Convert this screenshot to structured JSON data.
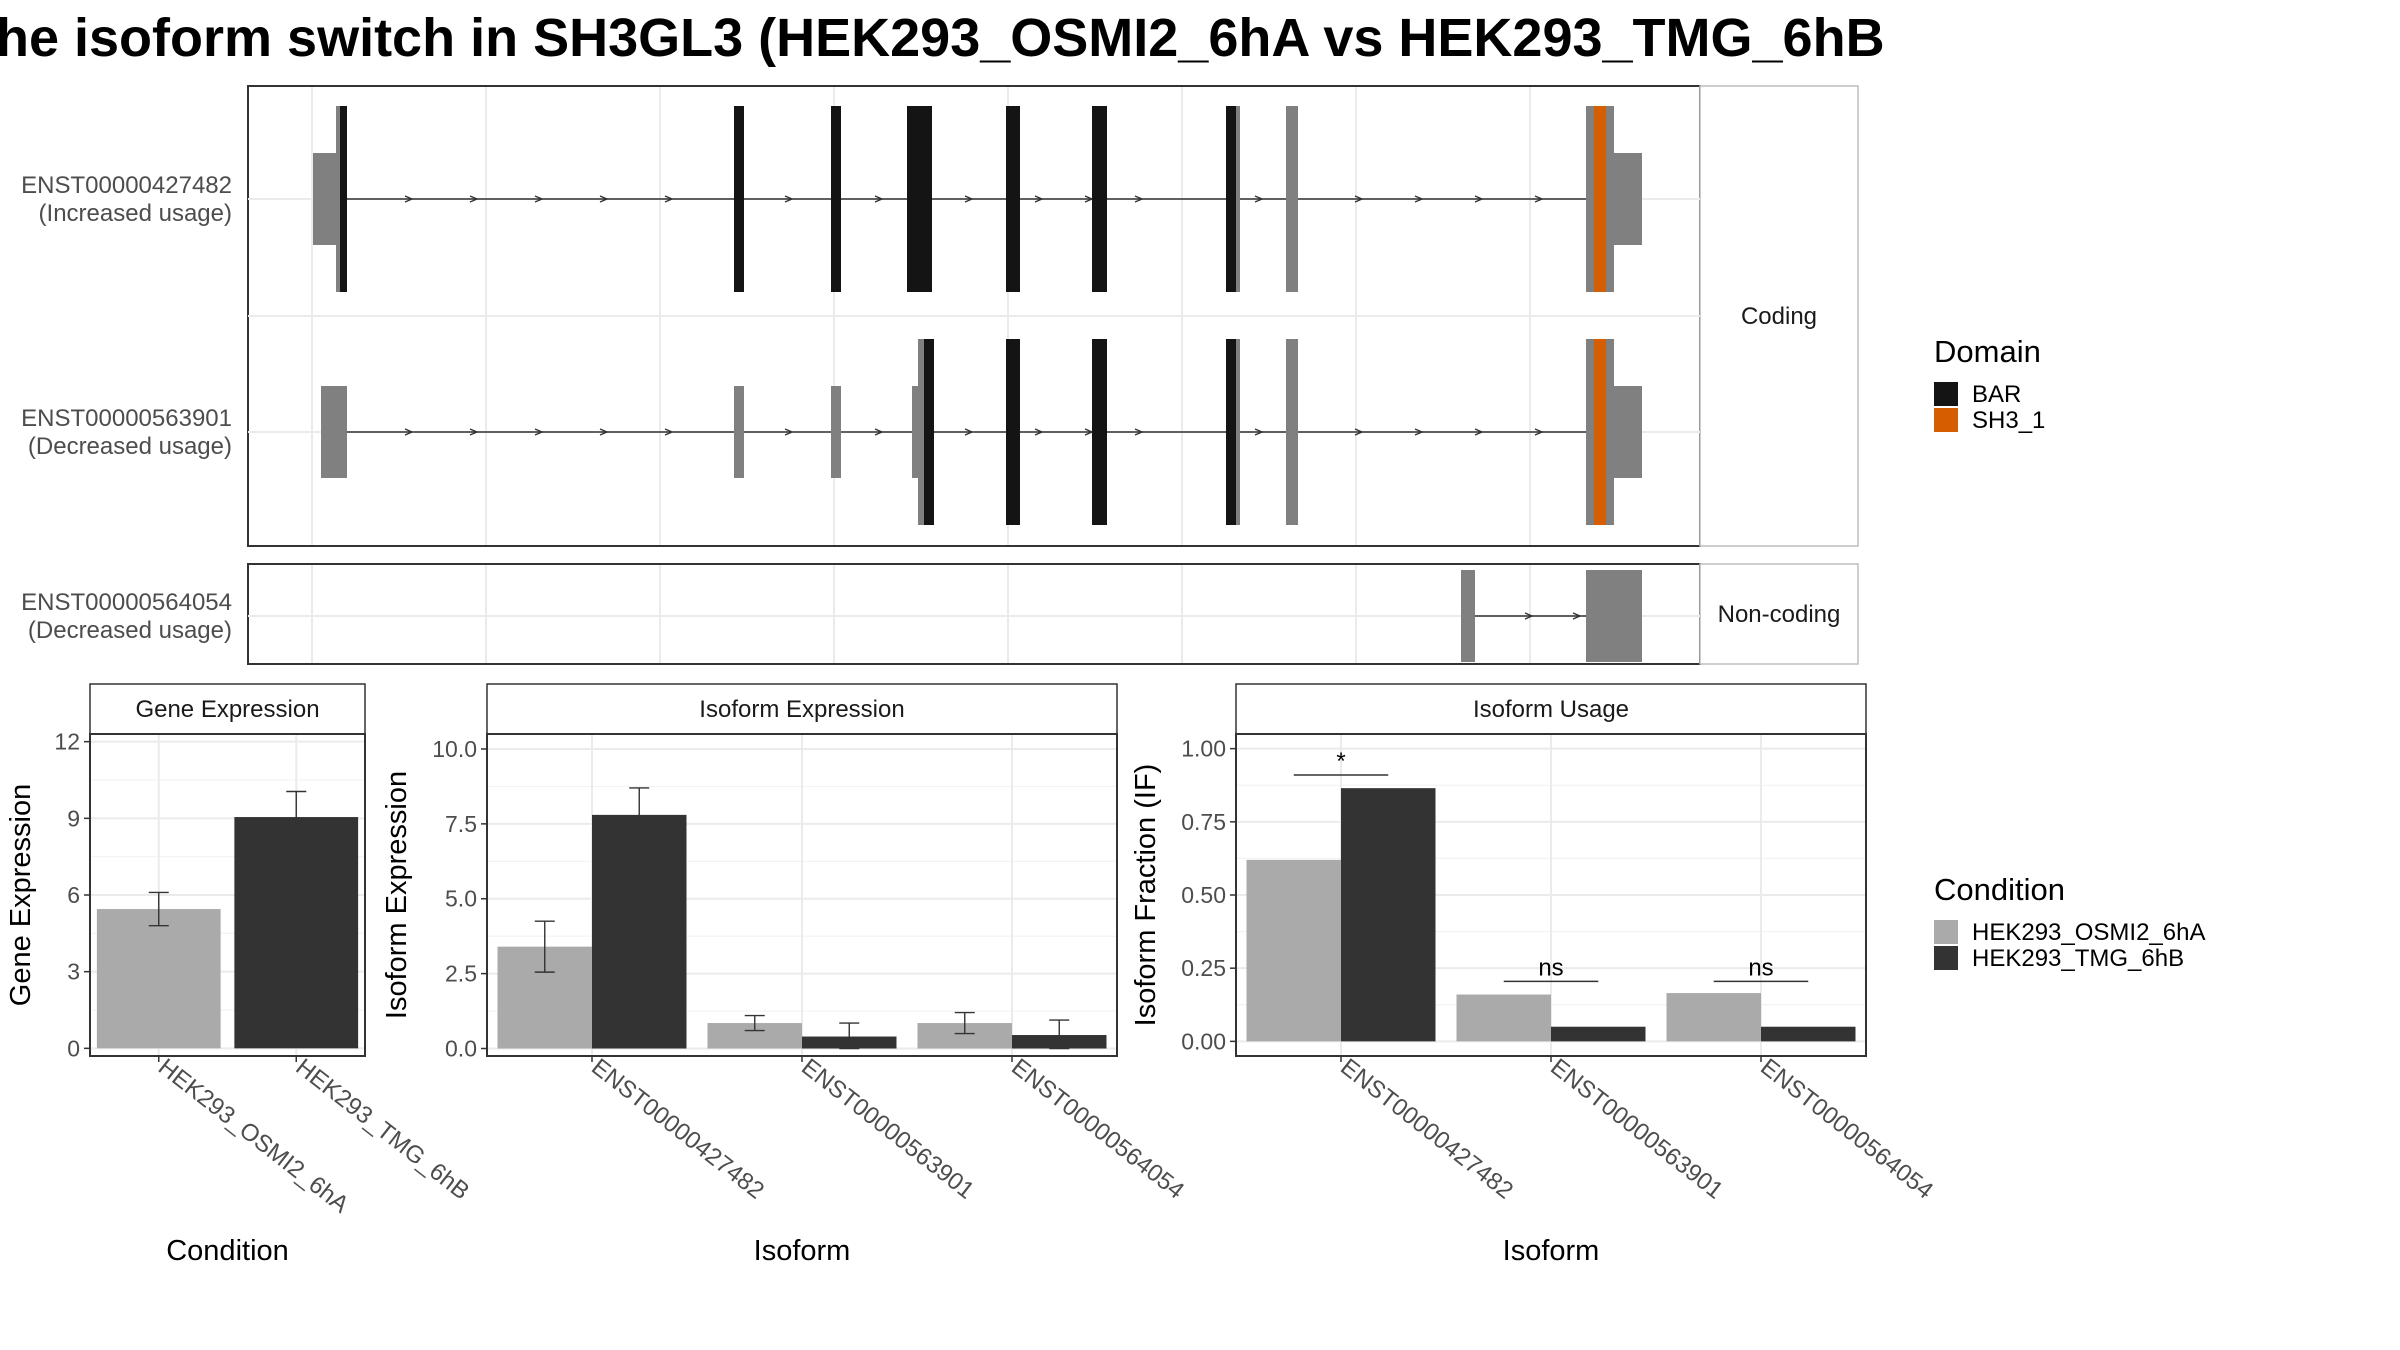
{
  "title": "he isoform switch in SH3GL3 (HEK293_OSMI2_6hA vs HEK293_TMG_6hB",
  "colors": {
    "bar_grey": "#aaaaaa",
    "bar_dark": "#333333",
    "exon_grey": "#808080",
    "exon_black": "#141414",
    "sh3": "#d55e00",
    "grid": "#ebebeb",
    "strip_text": "#1a1a1a"
  },
  "structure": {
    "facets": [
      {
        "label": "Coding",
        "tracks": [
          "t1",
          "t2"
        ]
      },
      {
        "label": "Non-coding",
        "tracks": [
          "t3"
        ]
      }
    ],
    "tracks": [
      {
        "id": "t1",
        "label_line1": "ENST00000427482",
        "label_line2": "(Increased usage)"
      },
      {
        "id": "t2",
        "label_line1": "ENST00000563901",
        "label_line2": "(Decreased usage)"
      },
      {
        "id": "t3",
        "label_line1": "ENST00000564054",
        "label_line2": "(Decreased usage)"
      }
    ],
    "legend_title": "Domain",
    "legend": [
      {
        "name": "BAR",
        "color": "#141414"
      },
      {
        "name": "SH3_1",
        "color": "#d55e00"
      }
    ]
  },
  "chart_data": [
    {
      "type": "bar",
      "panel_title": "Gene Expression",
      "ylabel": "Gene Expression",
      "xlabel": "Condition",
      "categories": [
        "HEK293_OSMI2_6hA",
        "HEK293_TMG_6hB"
      ],
      "yticks": [
        "0",
        "3",
        "6",
        "9",
        "12"
      ],
      "ylim": [
        -0.3,
        12.3
      ],
      "values": [
        5.45,
        9.05
      ],
      "errors": [
        [
          4.8,
          6.1
        ],
        [
          8.05,
          10.05
        ]
      ]
    },
    {
      "type": "bar",
      "panel_title": "Isoform Expression",
      "ylabel": "Isoform Expression",
      "xlabel": "Isoform",
      "categories": [
        "ENST00000427482",
        "ENST00000563901",
        "ENST00000564054"
      ],
      "yticks": [
        "0.0",
        "2.5",
        "5.0",
        "7.5",
        "10.0"
      ],
      "ylim": [
        -0.25,
        10.5
      ],
      "series": [
        {
          "name": "HEK293_OSMI2_6hA",
          "values": [
            3.4,
            0.85,
            0.85
          ],
          "errors": [
            [
              2.55,
              4.25
            ],
            [
              0.6,
              1.1
            ],
            [
              0.5,
              1.2
            ]
          ]
        },
        {
          "name": "HEK293_TMG_6hB",
          "values": [
            7.8,
            0.4,
            0.45
          ],
          "errors": [
            [
              6.9,
              8.7
            ],
            [
              0.0,
              0.85
            ],
            [
              0.0,
              0.95
            ]
          ]
        }
      ]
    },
    {
      "type": "bar",
      "panel_title": "Isoform Usage",
      "ylabel": "Isoform Fraction (IF)",
      "xlabel": "Isoform",
      "categories": [
        "ENST00000427482",
        "ENST00000563901",
        "ENST00000564054"
      ],
      "yticks": [
        "0.00",
        "0.25",
        "0.50",
        "0.75",
        "1.00"
      ],
      "ylim": [
        -0.05,
        1.05
      ],
      "series": [
        {
          "name": "HEK293_OSMI2_6hA",
          "values": [
            0.62,
            0.16,
            0.165
          ]
        },
        {
          "name": "HEK293_TMG_6hB",
          "values": [
            0.865,
            0.05,
            0.05
          ]
        }
      ],
      "significance": [
        "*",
        "ns",
        "ns"
      ],
      "significance_y": [
        0.91,
        0.205,
        0.205
      ]
    }
  ],
  "condition_legend": {
    "title": "Condition",
    "items": [
      {
        "name": "HEK293_OSMI2_6hA",
        "color": "#aaaaaa"
      },
      {
        "name": "HEK293_TMG_6hB",
        "color": "#333333"
      }
    ]
  }
}
